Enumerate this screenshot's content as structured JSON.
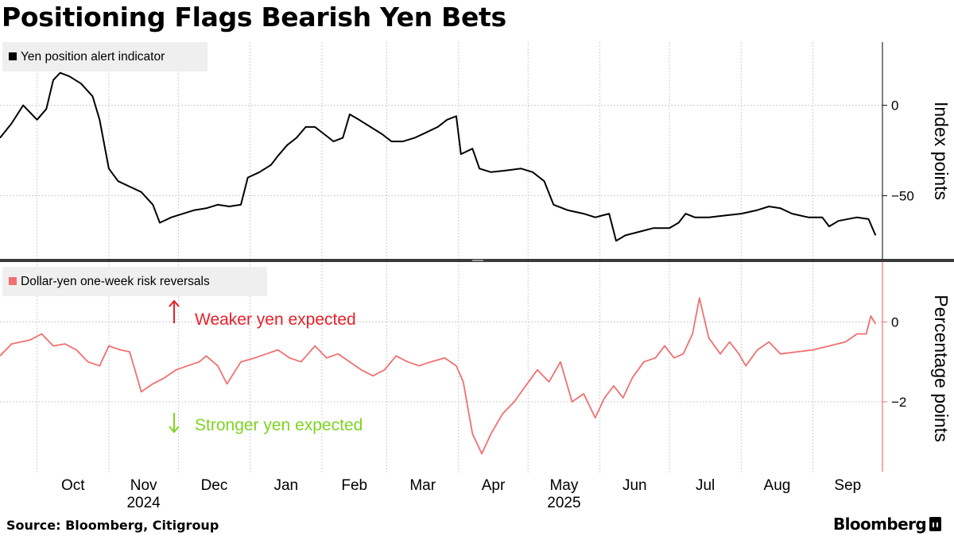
{
  "title": "Positioning Flags Bearish Yen Bets",
  "source": "Source: Bloomberg, Citigroup",
  "brand": "Bloomberg",
  "colors": {
    "top_line": "#000000",
    "bottom_line": "#f07070",
    "weaker": "#e8202a",
    "stronger": "#7ed321",
    "grid": "#cccccc"
  },
  "x_axis": {
    "months": [
      {
        "label": "Oct",
        "date": "2024-10-01"
      },
      {
        "label": "Nov",
        "date": "2024-11-01"
      },
      {
        "label": "Dec",
        "date": "2024-12-01"
      },
      {
        "label": "Jan",
        "date": "2025-01-01"
      },
      {
        "label": "Feb",
        "date": "2025-02-01"
      },
      {
        "label": "Mar",
        "date": "2025-03-01"
      },
      {
        "label": "Apr",
        "date": "2025-04-01"
      },
      {
        "label": "May",
        "date": "2025-05-01"
      },
      {
        "label": "Jun",
        "date": "2025-06-01"
      },
      {
        "label": "Jul",
        "date": "2025-07-01"
      },
      {
        "label": "Aug",
        "date": "2025-08-01"
      },
      {
        "label": "Sep",
        "date": "2025-09-01"
      }
    ],
    "years": [
      {
        "label": "2024",
        "date": "2024-11-01"
      },
      {
        "label": "2025",
        "date": "2025-05-01"
      }
    ],
    "range": [
      "2024-09-15",
      "2025-10-01"
    ]
  },
  "chart_data": [
    {
      "type": "line",
      "legend": "Yen position alert indicator",
      "ylabel": "Index points",
      "ylim": [
        -85,
        35
      ],
      "yticks": [
        0,
        -50
      ],
      "series": [
        {
          "name": "Yen position alert indicator",
          "color": "#000000",
          "points": [
            [
              "2024-09-15",
              -18
            ],
            [
              "2024-09-20",
              -10
            ],
            [
              "2024-09-25",
              0
            ],
            [
              "2024-10-01",
              -8
            ],
            [
              "2024-10-05",
              -2
            ],
            [
              "2024-10-08",
              14
            ],
            [
              "2024-10-11",
              18
            ],
            [
              "2024-10-15",
              16
            ],
            [
              "2024-10-20",
              12
            ],
            [
              "2024-10-25",
              5
            ],
            [
              "2024-10-28",
              -8
            ],
            [
              "2024-11-01",
              -35
            ],
            [
              "2024-11-05",
              -42
            ],
            [
              "2024-11-10",
              -45
            ],
            [
              "2024-11-15",
              -48
            ],
            [
              "2024-11-20",
              -55
            ],
            [
              "2024-11-23",
              -65
            ],
            [
              "2024-11-28",
              -62
            ],
            [
              "2024-12-03",
              -60
            ],
            [
              "2024-12-08",
              -58
            ],
            [
              "2024-12-13",
              -57
            ],
            [
              "2024-12-18",
              -55
            ],
            [
              "2024-12-23",
              -56
            ],
            [
              "2024-12-28",
              -55
            ],
            [
              "2024-12-31",
              -40
            ],
            [
              "2025-01-05",
              -37
            ],
            [
              "2025-01-10",
              -33
            ],
            [
              "2025-01-13",
              -28
            ],
            [
              "2025-01-17",
              -22
            ],
            [
              "2025-01-21",
              -18
            ],
            [
              "2025-01-25",
              -12
            ],
            [
              "2025-01-29",
              -12
            ],
            [
              "2025-02-02",
              -16
            ],
            [
              "2025-02-06",
              -20
            ],
            [
              "2025-02-10",
              -18
            ],
            [
              "2025-02-13",
              -5
            ],
            [
              "2025-02-17",
              -8
            ],
            [
              "2025-02-22",
              -12
            ],
            [
              "2025-02-27",
              -16
            ],
            [
              "2025-03-03",
              -20
            ],
            [
              "2025-03-08",
              -20
            ],
            [
              "2025-03-13",
              -18
            ],
            [
              "2025-03-18",
              -15
            ],
            [
              "2025-03-23",
              -12
            ],
            [
              "2025-03-27",
              -8
            ],
            [
              "2025-03-31",
              -6
            ],
            [
              "2025-04-02",
              -27
            ],
            [
              "2025-04-07",
              -24
            ],
            [
              "2025-04-10",
              -35
            ],
            [
              "2025-04-15",
              -37
            ],
            [
              "2025-04-22",
              -36
            ],
            [
              "2025-04-28",
              -35
            ],
            [
              "2025-05-03",
              -37
            ],
            [
              "2025-05-08",
              -42
            ],
            [
              "2025-05-12",
              -55
            ],
            [
              "2025-05-18",
              -58
            ],
            [
              "2025-05-25",
              -60
            ],
            [
              "2025-05-30",
              -62
            ],
            [
              "2025-06-05",
              -60
            ],
            [
              "2025-06-08",
              -75
            ],
            [
              "2025-06-12",
              -72
            ],
            [
              "2025-06-18",
              -70
            ],
            [
              "2025-06-24",
              -68
            ],
            [
              "2025-07-01",
              -68
            ],
            [
              "2025-07-05",
              -65
            ],
            [
              "2025-07-08",
              -60
            ],
            [
              "2025-07-12",
              -62
            ],
            [
              "2025-07-18",
              -62
            ],
            [
              "2025-07-25",
              -61
            ],
            [
              "2025-08-01",
              -60
            ],
            [
              "2025-08-08",
              -58
            ],
            [
              "2025-08-13",
              -56
            ],
            [
              "2025-08-18",
              -57
            ],
            [
              "2025-08-23",
              -60
            ],
            [
              "2025-08-30",
              -62
            ],
            [
              "2025-09-05",
              -62
            ],
            [
              "2025-09-08",
              -67
            ],
            [
              "2025-09-12",
              -64
            ],
            [
              "2025-09-20",
              -62
            ],
            [
              "2025-09-25",
              -63
            ],
            [
              "2025-09-28",
              -72
            ]
          ]
        }
      ]
    },
    {
      "type": "line",
      "legend": "Dollar-yen one-week risk reversals",
      "ylabel": "Percentage points",
      "ylim": [
        -3.75,
        1.5
      ],
      "yticks": [
        0,
        -2
      ],
      "annotations": {
        "weaker": "Weaker yen expected",
        "stronger": "Stronger yen expected"
      },
      "series": [
        {
          "name": "Dollar-yen one-week risk reversals",
          "color": "#f07070",
          "points": [
            [
              "2024-09-15",
              -0.85
            ],
            [
              "2024-09-20",
              -0.55
            ],
            [
              "2024-09-28",
              -0.45
            ],
            [
              "2024-10-03",
              -0.3
            ],
            [
              "2024-10-08",
              -0.6
            ],
            [
              "2024-10-13",
              -0.55
            ],
            [
              "2024-10-18",
              -0.7
            ],
            [
              "2024-10-23",
              -1.0
            ],
            [
              "2024-10-28",
              -1.1
            ],
            [
              "2024-11-01",
              -0.6
            ],
            [
              "2024-11-06",
              -0.7
            ],
            [
              "2024-11-10",
              -0.75
            ],
            [
              "2024-11-15",
              -1.75
            ],
            [
              "2024-11-20",
              -1.55
            ],
            [
              "2024-11-25",
              -1.4
            ],
            [
              "2024-11-30",
              -1.2
            ],
            [
              "2024-12-05",
              -1.1
            ],
            [
              "2024-12-10",
              -1.0
            ],
            [
              "2024-12-13",
              -0.85
            ],
            [
              "2024-12-18",
              -1.1
            ],
            [
              "2024-12-22",
              -1.55
            ],
            [
              "2024-12-28",
              -1.0
            ],
            [
              "2025-01-03",
              -0.9
            ],
            [
              "2025-01-08",
              -0.8
            ],
            [
              "2025-01-13",
              -0.7
            ],
            [
              "2025-01-18",
              -0.9
            ],
            [
              "2025-01-23",
              -1.0
            ],
            [
              "2025-01-29",
              -0.6
            ],
            [
              "2025-02-03",
              -0.9
            ],
            [
              "2025-02-08",
              -0.8
            ],
            [
              "2025-02-13",
              -1.0
            ],
            [
              "2025-02-18",
              -1.2
            ],
            [
              "2025-02-23",
              -1.35
            ],
            [
              "2025-02-28",
              -1.2
            ],
            [
              "2025-03-05",
              -0.85
            ],
            [
              "2025-03-10",
              -1.0
            ],
            [
              "2025-03-15",
              -1.1
            ],
            [
              "2025-03-20",
              -1.0
            ],
            [
              "2025-03-26",
              -0.9
            ],
            [
              "2025-03-31",
              -1.1
            ],
            [
              "2025-04-03",
              -1.5
            ],
            [
              "2025-04-07",
              -2.8
            ],
            [
              "2025-04-11",
              -3.3
            ],
            [
              "2025-04-15",
              -2.8
            ],
            [
              "2025-04-20",
              -2.3
            ],
            [
              "2025-04-25",
              -2.0
            ],
            [
              "2025-04-30",
              -1.6
            ],
            [
              "2025-05-05",
              -1.2
            ],
            [
              "2025-05-10",
              -1.5
            ],
            [
              "2025-05-15",
              -1.0
            ],
            [
              "2025-05-20",
              -2.0
            ],
            [
              "2025-05-25",
              -1.8
            ],
            [
              "2025-05-30",
              -2.4
            ],
            [
              "2025-06-03",
              -1.9
            ],
            [
              "2025-06-07",
              -1.6
            ],
            [
              "2025-06-11",
              -1.9
            ],
            [
              "2025-06-15",
              -1.4
            ],
            [
              "2025-06-20",
              -1.0
            ],
            [
              "2025-06-25",
              -0.9
            ],
            [
              "2025-06-29",
              -0.6
            ],
            [
              "2025-07-03",
              -0.9
            ],
            [
              "2025-07-07",
              -0.8
            ],
            [
              "2025-07-11",
              -0.3
            ],
            [
              "2025-07-14",
              0.6
            ],
            [
              "2025-07-18",
              -0.4
            ],
            [
              "2025-07-23",
              -0.8
            ],
            [
              "2025-07-27",
              -0.5
            ],
            [
              "2025-07-31",
              -0.8
            ],
            [
              "2025-08-03",
              -1.1
            ],
            [
              "2025-08-08",
              -0.7
            ],
            [
              "2025-08-13",
              -0.5
            ],
            [
              "2025-08-18",
              -0.8
            ],
            [
              "2025-08-25",
              -0.75
            ],
            [
              "2025-09-01",
              -0.7
            ],
            [
              "2025-09-08",
              -0.6
            ],
            [
              "2025-09-15",
              -0.5
            ],
            [
              "2025-09-20",
              -0.3
            ],
            [
              "2025-09-24",
              -0.3
            ],
            [
              "2025-09-26",
              0.15
            ],
            [
              "2025-09-28",
              -0.05
            ]
          ]
        }
      ]
    }
  ]
}
